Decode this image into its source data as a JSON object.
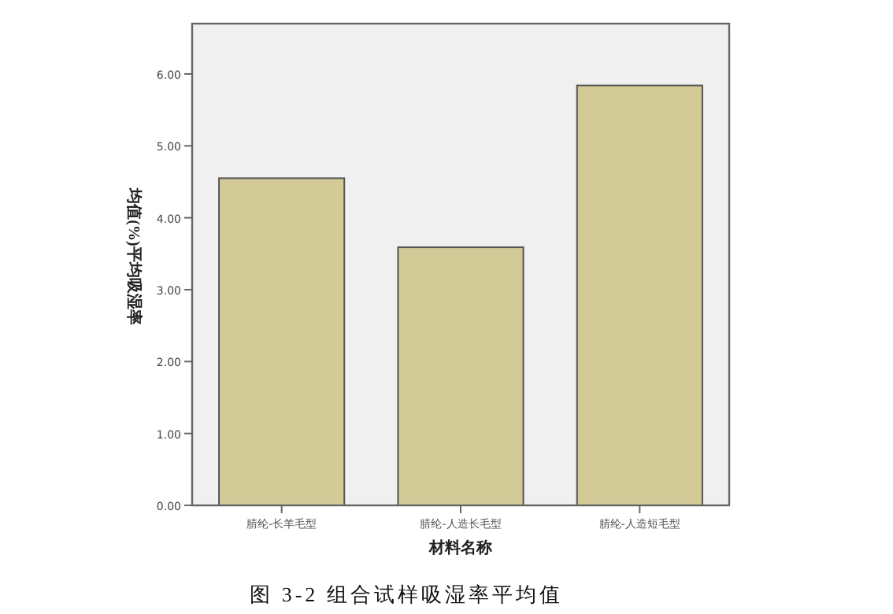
{
  "chart_data": {
    "type": "bar",
    "categories": [
      "腈纶-长羊毛型",
      "腈纶-人造长毛型",
      "腈纶-人造短毛型"
    ],
    "values": [
      4.55,
      3.59,
      5.84
    ],
    "color": "#d3cb97",
    "xlabel": "材料名称",
    "ylabel": "均值(%)平均吸湿率",
    "ylim": [
      0,
      6.7
    ],
    "yticks": [
      {
        "value": 0,
        "label": "0.00"
      },
      {
        "value": 1,
        "label": "1.00"
      },
      {
        "value": 2,
        "label": "2.00"
      },
      {
        "value": 3,
        "label": "3.00"
      },
      {
        "value": 4,
        "label": "4.00"
      },
      {
        "value": 5,
        "label": "5.00"
      },
      {
        "value": 6,
        "label": "6.00"
      }
    ],
    "grid": false,
    "annotations": [
      "图 3-2 组合试样吸湿率平均值"
    ]
  }
}
